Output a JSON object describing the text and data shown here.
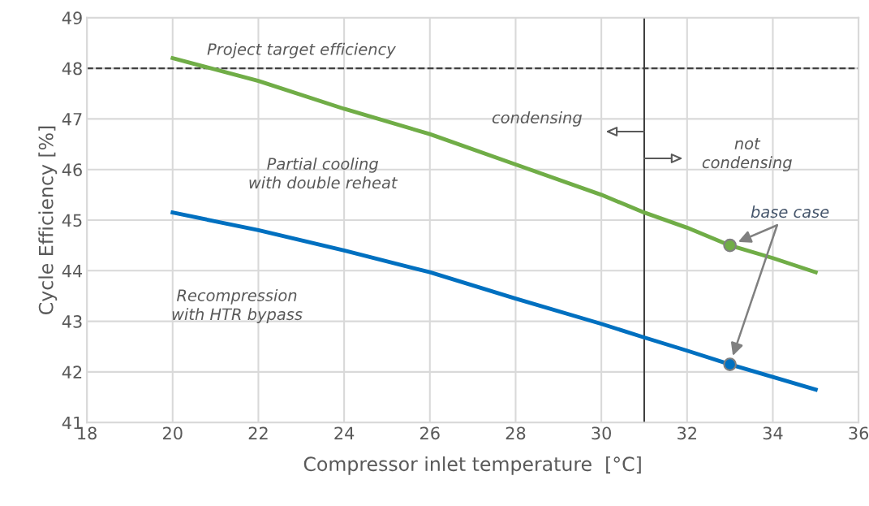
{
  "chart_data": {
    "type": "line",
    "xlabel": "Compressor inlet temperature  [°C]",
    "ylabel": "Cycle Efficiency [%]",
    "xlim": [
      18,
      36
    ],
    "xticks": [
      18,
      20,
      22,
      24,
      26,
      28,
      30,
      32,
      34,
      36
    ],
    "ylim": [
      41,
      49
    ],
    "yticks": [
      41,
      42,
      43,
      44,
      45,
      46,
      47,
      48,
      49
    ],
    "grid": true,
    "marker": "none",
    "line_style": "solid",
    "series": [
      {
        "color": "#70ad47",
        "x": [
          20,
          22,
          24,
          26,
          28,
          30,
          31,
          32,
          33,
          34,
          35
        ],
        "values": [
          48.2,
          47.75,
          47.2,
          46.7,
          46.1,
          45.5,
          45.15,
          44.85,
          44.5,
          44.25,
          43.97
        ]
      },
      {
        "color": "#0070c0",
        "x": [
          20,
          22,
          24,
          26,
          28,
          30,
          31,
          32,
          33,
          34,
          35
        ],
        "values": [
          45.15,
          44.8,
          44.4,
          43.97,
          43.45,
          42.95,
          42.68,
          42.42,
          42.15,
          41.9,
          41.65
        ]
      },
      {
        "type": "scatter",
        "marker": "circle",
        "color": "#70ad47",
        "x": [
          33
        ],
        "values": [
          44.5
        ]
      },
      {
        "type": "scatter",
        "marker": "circle",
        "color": "#0070c0",
        "x": [
          33
        ],
        "values": [
          42.15
        ]
      }
    ],
    "ref_lines": [
      {
        "axis": "y",
        "value": 48,
        "label": "Project target efficiency",
        "color": "#404040",
        "line_style": "dashed"
      },
      {
        "axis": "x",
        "value": 31,
        "color": "#404040",
        "line_style": "solid"
      }
    ],
    "annotations": [
      "condensing",
      "not\ncondensing",
      "Partial cooling\nwith double reheat",
      "Recompression\nwith HTR bypass",
      {
        "text": "base case",
        "x": 33,
        "y": 44.5
      }
    ]
  }
}
